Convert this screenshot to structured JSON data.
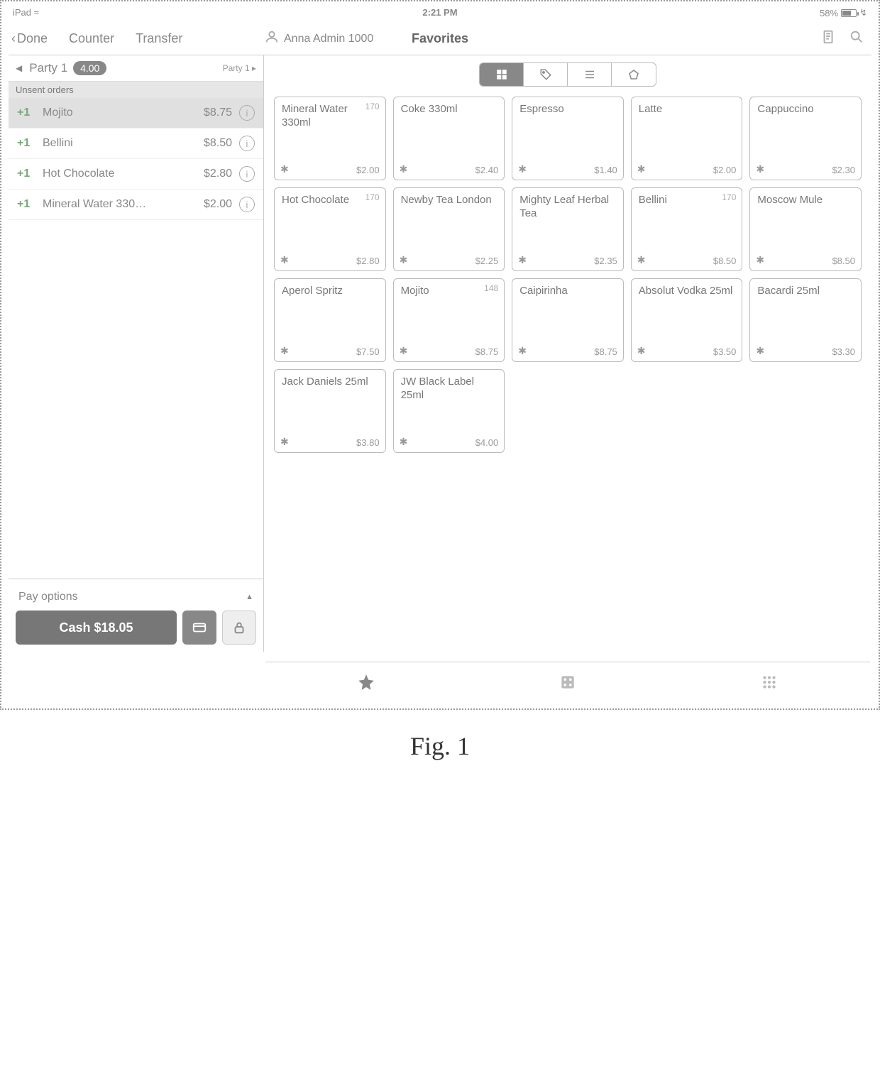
{
  "status": {
    "device": "iPad",
    "time": "2:21 PM",
    "battery_pct": "58%"
  },
  "topbar": {
    "done": "Done",
    "counter": "Counter",
    "transfer": "Transfer",
    "user": "Anna Admin 1000",
    "title": "Favorites"
  },
  "order": {
    "party_label": "Party 1",
    "party_count": "4.00",
    "party_selector": "Party 1 ▸",
    "unsent_label": "Unsent orders",
    "items": [
      {
        "qty": "+1",
        "name": "Mojito",
        "price": "$8.75",
        "hl": true
      },
      {
        "qty": "+1",
        "name": "Bellini",
        "price": "$8.50",
        "hl": false
      },
      {
        "qty": "+1",
        "name": "Hot Chocolate",
        "price": "$2.80",
        "hl": false
      },
      {
        "qty": "+1",
        "name": "Mineral Water 330…",
        "price": "$2.00",
        "hl": false
      }
    ],
    "pay_options_label": "Pay options",
    "cash_label": "Cash $18.05"
  },
  "grid": {
    "tiles": [
      {
        "name": "Mineral Water 330ml",
        "price": "$2.00",
        "stock": "170"
      },
      {
        "name": "Coke 330ml",
        "price": "$2.40",
        "stock": ""
      },
      {
        "name": "Espresso",
        "price": "$1.40",
        "stock": ""
      },
      {
        "name": "Latte",
        "price": "$2.00",
        "stock": ""
      },
      {
        "name": "Cappuccino",
        "price": "$2.30",
        "stock": ""
      },
      {
        "name": "Hot Chocolate",
        "price": "$2.80",
        "stock": "170"
      },
      {
        "name": "Newby Tea London",
        "price": "$2.25",
        "stock": ""
      },
      {
        "name": "Mighty Leaf Herbal Tea",
        "price": "$2.35",
        "stock": ""
      },
      {
        "name": "Bellini",
        "price": "$8.50",
        "stock": "170"
      },
      {
        "name": "Moscow Mule",
        "price": "$8.50",
        "stock": ""
      },
      {
        "name": "Aperol Spritz",
        "price": "$7.50",
        "stock": ""
      },
      {
        "name": "Mojito",
        "price": "$8.75",
        "stock": "148"
      },
      {
        "name": "Caipirinha",
        "price": "$8.75",
        "stock": ""
      },
      {
        "name": "Absolut Vodka 25ml",
        "price": "$3.50",
        "stock": ""
      },
      {
        "name": "Bacardi 25ml",
        "price": "$3.30",
        "stock": ""
      },
      {
        "name": "Jack Daniels 25ml",
        "price": "$3.80",
        "stock": ""
      },
      {
        "name": "JW Black Label 25ml",
        "price": "$4.00",
        "stock": ""
      }
    ]
  },
  "figure_label": "Fig. 1"
}
